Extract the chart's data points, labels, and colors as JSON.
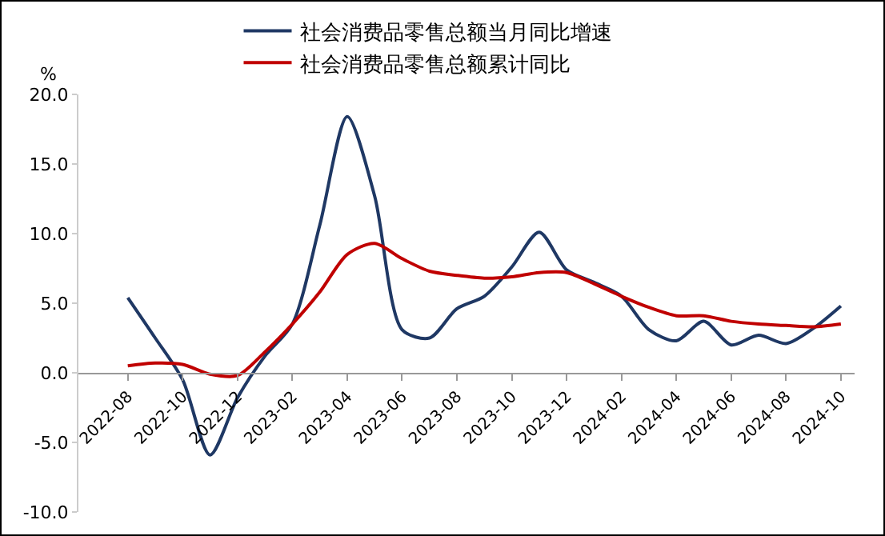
{
  "chart_data": {
    "type": "line",
    "ylabel": "%",
    "categories": [
      "2022-08",
      null,
      "2022-10",
      null,
      "2022-12",
      null,
      "2023-02",
      null,
      "2023-04",
      null,
      "2023-06",
      null,
      "2023-08",
      null,
      "2023-10",
      null,
      "2023-12",
      null,
      "2024-02",
      null,
      "2024-04",
      null,
      "2024-06",
      null,
      "2024-08",
      null,
      "2024-10"
    ],
    "series": [
      {
        "name": "社会消费品零售总额当月同比增速",
        "color": "#1f3864",
        "values": [
          5.4,
          2.5,
          -0.5,
          -5.9,
          -1.8,
          1.2,
          3.5,
          10.6,
          18.4,
          12.7,
          3.1,
          2.5,
          4.6,
          5.5,
          7.6,
          10.1,
          7.4,
          6.5,
          5.5,
          3.1,
          2.3,
          3.7,
          2.0,
          2.7,
          2.1,
          3.2,
          4.8
        ]
      },
      {
        "name": "社会消费品零售总额累计同比",
        "color": "#c00000",
        "values": [
          0.5,
          0.7,
          0.6,
          -0.1,
          -0.2,
          1.5,
          3.5,
          5.8,
          8.5,
          9.3,
          8.2,
          7.3,
          7.0,
          6.8,
          6.9,
          7.2,
          7.2,
          6.4,
          5.5,
          4.7,
          4.1,
          4.1,
          3.7,
          3.5,
          3.4,
          3.3,
          3.5
        ]
      }
    ],
    "ylim": [
      -10,
      20
    ],
    "yticks": [
      {
        "value": -10,
        "label": "-10.0"
      },
      {
        "value": -5,
        "label": "-5.0"
      },
      {
        "value": 0,
        "label": "0.0"
      },
      {
        "value": 5,
        "label": "5.0"
      },
      {
        "value": 10,
        "label": "10.0"
      },
      {
        "value": 15,
        "label": "15.0"
      },
      {
        "value": 20,
        "label": "20.0"
      }
    ],
    "grid": false,
    "legend": "top",
    "marker": "none",
    "line_style": "solid"
  }
}
